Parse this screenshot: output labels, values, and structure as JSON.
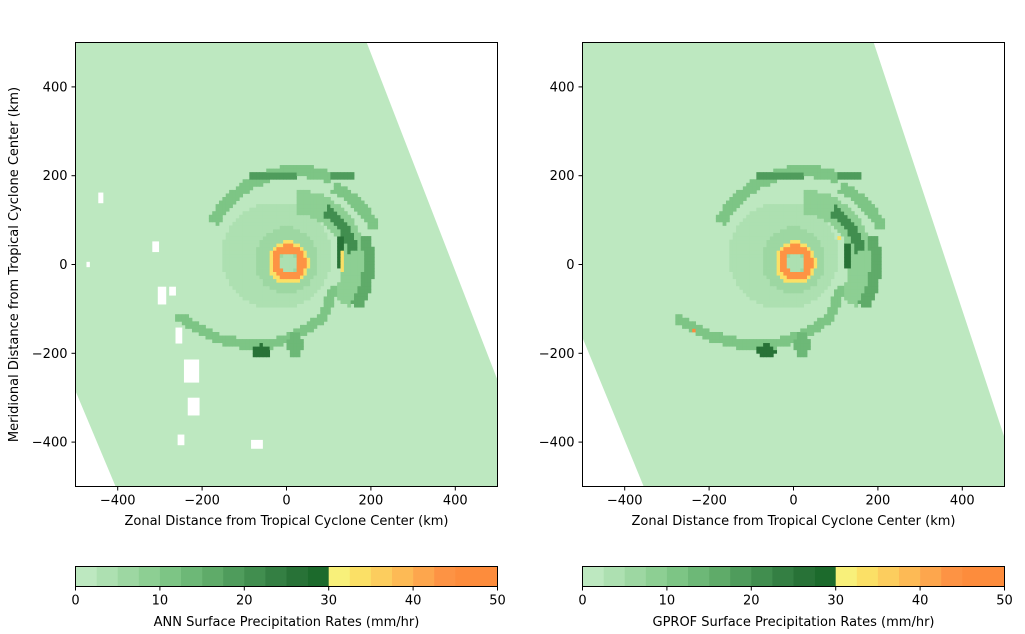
{
  "panels": [
    {
      "xlabel": "Zonal Distance from Tropical Cyclone Center (km)",
      "ylabel": "Meridional Distance from Tropical Cyclone Center (km)",
      "colorbar_label": "ANN Surface Precipitation Rates (mm/hr)"
    },
    {
      "xlabel": "Zonal Distance from Tropical Cyclone Center (km)",
      "ylabel": "",
      "colorbar_label": "GPROF Surface Precipitation Rates (mm/hr)"
    }
  ],
  "chart_data": {
    "type": "heatmap",
    "xlim": [
      -500,
      500
    ],
    "ylim": [
      -500,
      500
    ],
    "xticks": [
      -400,
      -200,
      0,
      200,
      400
    ],
    "yticks": [
      -400,
      -200,
      0,
      200,
      400
    ],
    "xtick_labels": [
      "−400",
      "−200",
      "0",
      "200",
      "400"
    ],
    "ytick_labels": [
      "−400",
      "−200",
      "0",
      "200",
      "400"
    ],
    "colorbar": {
      "range": [
        0,
        50
      ],
      "ticks": [
        0,
        10,
        20,
        30,
        40,
        50
      ],
      "boundaries": [
        0,
        2.5,
        5,
        7.5,
        10,
        12.5,
        15,
        17.5,
        20,
        22.5,
        25,
        27.5,
        30,
        32.5,
        35,
        37.5,
        40,
        42.5,
        45,
        50
      ],
      "colors": [
        "#bde8c0",
        "#ade0b1",
        "#9dd7a2",
        "#8dcf93",
        "#7dc585",
        "#6db877",
        "#5fab69",
        "#4f9c5c",
        "#418e4f",
        "#347f43",
        "#287237",
        "#1c6a2c",
        "#f8f07a",
        "#fbe066",
        "#fccd5e",
        "#fdba55",
        "#fda64d",
        "#fd9344",
        "#fd8c3c"
      ]
    },
    "swath": {
      "ANN": [
        [
          -210,
          500
        ],
        [
          190,
          500
        ],
        [
          500,
          -260
        ],
        [
          500,
          -500
        ],
        [
          -405,
          -500
        ],
        [
          -500,
          -285
        ],
        [
          -500,
          500
        ]
      ],
      "GPROF": [
        [
          -210,
          500
        ],
        [
          190,
          500
        ],
        [
          500,
          -390
        ],
        [
          500,
          -500
        ],
        [
          -355,
          -500
        ],
        [
          -500,
          -165
        ],
        [
          -500,
          500
        ]
      ]
    },
    "background_rate_mm_hr": 1.0,
    "series": [
      {
        "name": "ANN",
        "features": [
          {
            "shape": "ellipse",
            "cx": -25,
            "cy": 20,
            "rx": 130,
            "ry": 120,
            "rate": 3,
            "t": 55
          },
          {
            "shape": "ellipse",
            "cx": 0,
            "cy": 10,
            "rx": 75,
            "ry": 75,
            "rate": 6,
            "t": 30
          },
          {
            "shape": "arc",
            "cx": 25,
            "cy": 5,
            "r": 135,
            "a0": -40,
            "a1": 90,
            "t": 55,
            "rate": 8
          },
          {
            "shape": "arc",
            "cx": 25,
            "cy": 5,
            "r": 135,
            "a0": 10,
            "a1": 60,
            "t": 26,
            "rate": 22
          },
          {
            "shape": "arc",
            "cx": 25,
            "cy": 5,
            "r": 170,
            "a0": -35,
            "a1": 20,
            "t": 26,
            "rate": 16
          },
          {
            "shape": "arc",
            "cx": 25,
            "cy": -20,
            "r": 230,
            "a0": 70,
            "a1": 150,
            "t": 26,
            "rate": 10
          },
          {
            "shape": "arc",
            "cx": 20,
            "cy": -20,
            "r": 215,
            "a0": 28,
            "a1": 65,
            "t": 26,
            "rate": 12
          },
          {
            "shape": "ellipse",
            "cx": -35,
            "cy": 200,
            "rx": 60,
            "ry": 12,
            "rate": 18
          },
          {
            "shape": "ellipse",
            "cx": 135,
            "cy": 200,
            "rx": 30,
            "ry": 12,
            "rate": 18
          },
          {
            "shape": "line",
            "pts": [
              [
                -250,
                -120
              ],
              [
                -170,
                -165
              ],
              [
                -100,
                -180
              ],
              [
                -40,
                -180
              ],
              [
                20,
                -160
              ],
              [
                85,
                -120
              ],
              [
                110,
                -60
              ]
            ],
            "t": 22,
            "rate": 10
          },
          {
            "shape": "ellipse",
            "cx": -60,
            "cy": -195,
            "rx": 22,
            "ry": 16,
            "rate": 26
          },
          {
            "shape": "ellipse",
            "cx": 20,
            "cy": -180,
            "rx": 18,
            "ry": 30,
            "rate": 14
          },
          {
            "shape": "ring",
            "cx": 5,
            "cy": 5,
            "r": 32,
            "t": 18,
            "rate": 44
          },
          {
            "shape": "ring",
            "cx": 5,
            "cy": 5,
            "r": 45,
            "t": 8,
            "rate": 33
          },
          {
            "shape": "ellipse",
            "cx": 5,
            "cy": 5,
            "rx": 20,
            "ry": 20,
            "rate": 3
          },
          {
            "shape": "ellipse",
            "cx": 128,
            "cy": 25,
            "rx": 6,
            "ry": 48,
            "rate": 27
          },
          {
            "shape": "ellipse",
            "cx": 132,
            "cy": 10,
            "rx": 3,
            "ry": 25,
            "rate": 33
          }
        ],
        "gaps": [
          [
            -440,
            150,
            6,
            12
          ],
          [
            -310,
            40,
            8,
            12
          ],
          [
            -295,
            -70,
            10,
            20
          ],
          [
            -270,
            -60,
            8,
            10
          ],
          [
            -255,
            -160,
            8,
            18
          ],
          [
            -225,
            -240,
            18,
            26
          ],
          [
            -220,
            -320,
            14,
            20
          ],
          [
            -250,
            -395,
            8,
            12
          ],
          [
            -70,
            -405,
            14,
            10
          ],
          [
            -470,
            0,
            4,
            6
          ]
        ]
      },
      {
        "name": "GPROF",
        "features": [
          {
            "shape": "ellipse",
            "cx": -25,
            "cy": 20,
            "rx": 130,
            "ry": 120,
            "rate": 3,
            "t": 55
          },
          {
            "shape": "ellipse",
            "cx": 0,
            "cy": 10,
            "rx": 75,
            "ry": 75,
            "rate": 6,
            "t": 30
          },
          {
            "shape": "arc",
            "cx": 25,
            "cy": 5,
            "r": 135,
            "a0": -40,
            "a1": 90,
            "t": 55,
            "rate": 8
          },
          {
            "shape": "arc",
            "cx": 25,
            "cy": 5,
            "r": 135,
            "a0": 10,
            "a1": 60,
            "t": 26,
            "rate": 22
          },
          {
            "shape": "arc",
            "cx": 25,
            "cy": 5,
            "r": 170,
            "a0": -35,
            "a1": 20,
            "t": 26,
            "rate": 16
          },
          {
            "shape": "arc",
            "cx": 25,
            "cy": -20,
            "r": 230,
            "a0": 70,
            "a1": 150,
            "t": 26,
            "rate": 10
          },
          {
            "shape": "arc",
            "cx": 20,
            "cy": -20,
            "r": 215,
            "a0": 28,
            "a1": 65,
            "t": 26,
            "rate": 12
          },
          {
            "shape": "ellipse",
            "cx": -35,
            "cy": 200,
            "rx": 60,
            "ry": 12,
            "rate": 18
          },
          {
            "shape": "ellipse",
            "cx": 135,
            "cy": 200,
            "rx": 30,
            "ry": 12,
            "rate": 18
          },
          {
            "shape": "line",
            "pts": [
              [
                -270,
                -125
              ],
              [
                -200,
                -160
              ],
              [
                -120,
                -180
              ],
              [
                -50,
                -180
              ],
              [
                20,
                -160
              ],
              [
                85,
                -120
              ],
              [
                110,
                -60
              ]
            ],
            "t": 22,
            "rate": 10
          },
          {
            "shape": "ellipse",
            "cx": -65,
            "cy": -195,
            "rx": 22,
            "ry": 16,
            "rate": 26
          },
          {
            "shape": "ellipse",
            "cx": 20,
            "cy": -180,
            "rx": 18,
            "ry": 30,
            "rate": 14
          },
          {
            "shape": "ellipse",
            "cx": -235,
            "cy": -145,
            "rx": 5,
            "ry": 5,
            "rate": 46
          },
          {
            "shape": "ring",
            "cx": 5,
            "cy": 5,
            "r": 32,
            "t": 18,
            "rate": 44
          },
          {
            "shape": "ring",
            "cx": 5,
            "cy": 5,
            "r": 45,
            "t": 8,
            "rate": 33
          },
          {
            "shape": "ellipse",
            "cx": 5,
            "cy": 5,
            "rx": 20,
            "ry": 20,
            "rate": 3
          },
          {
            "shape": "ellipse",
            "cx": 128,
            "cy": 20,
            "rx": 6,
            "ry": 40,
            "rate": 27
          },
          {
            "shape": "ellipse",
            "cx": 135,
            "cy": 5,
            "rx": 3,
            "ry": 20,
            "rate": 33
          },
          {
            "shape": "ellipse",
            "cx": 105,
            "cy": 60,
            "rx": 4,
            "ry": 6,
            "rate": 33
          }
        ],
        "gaps": []
      }
    ]
  }
}
